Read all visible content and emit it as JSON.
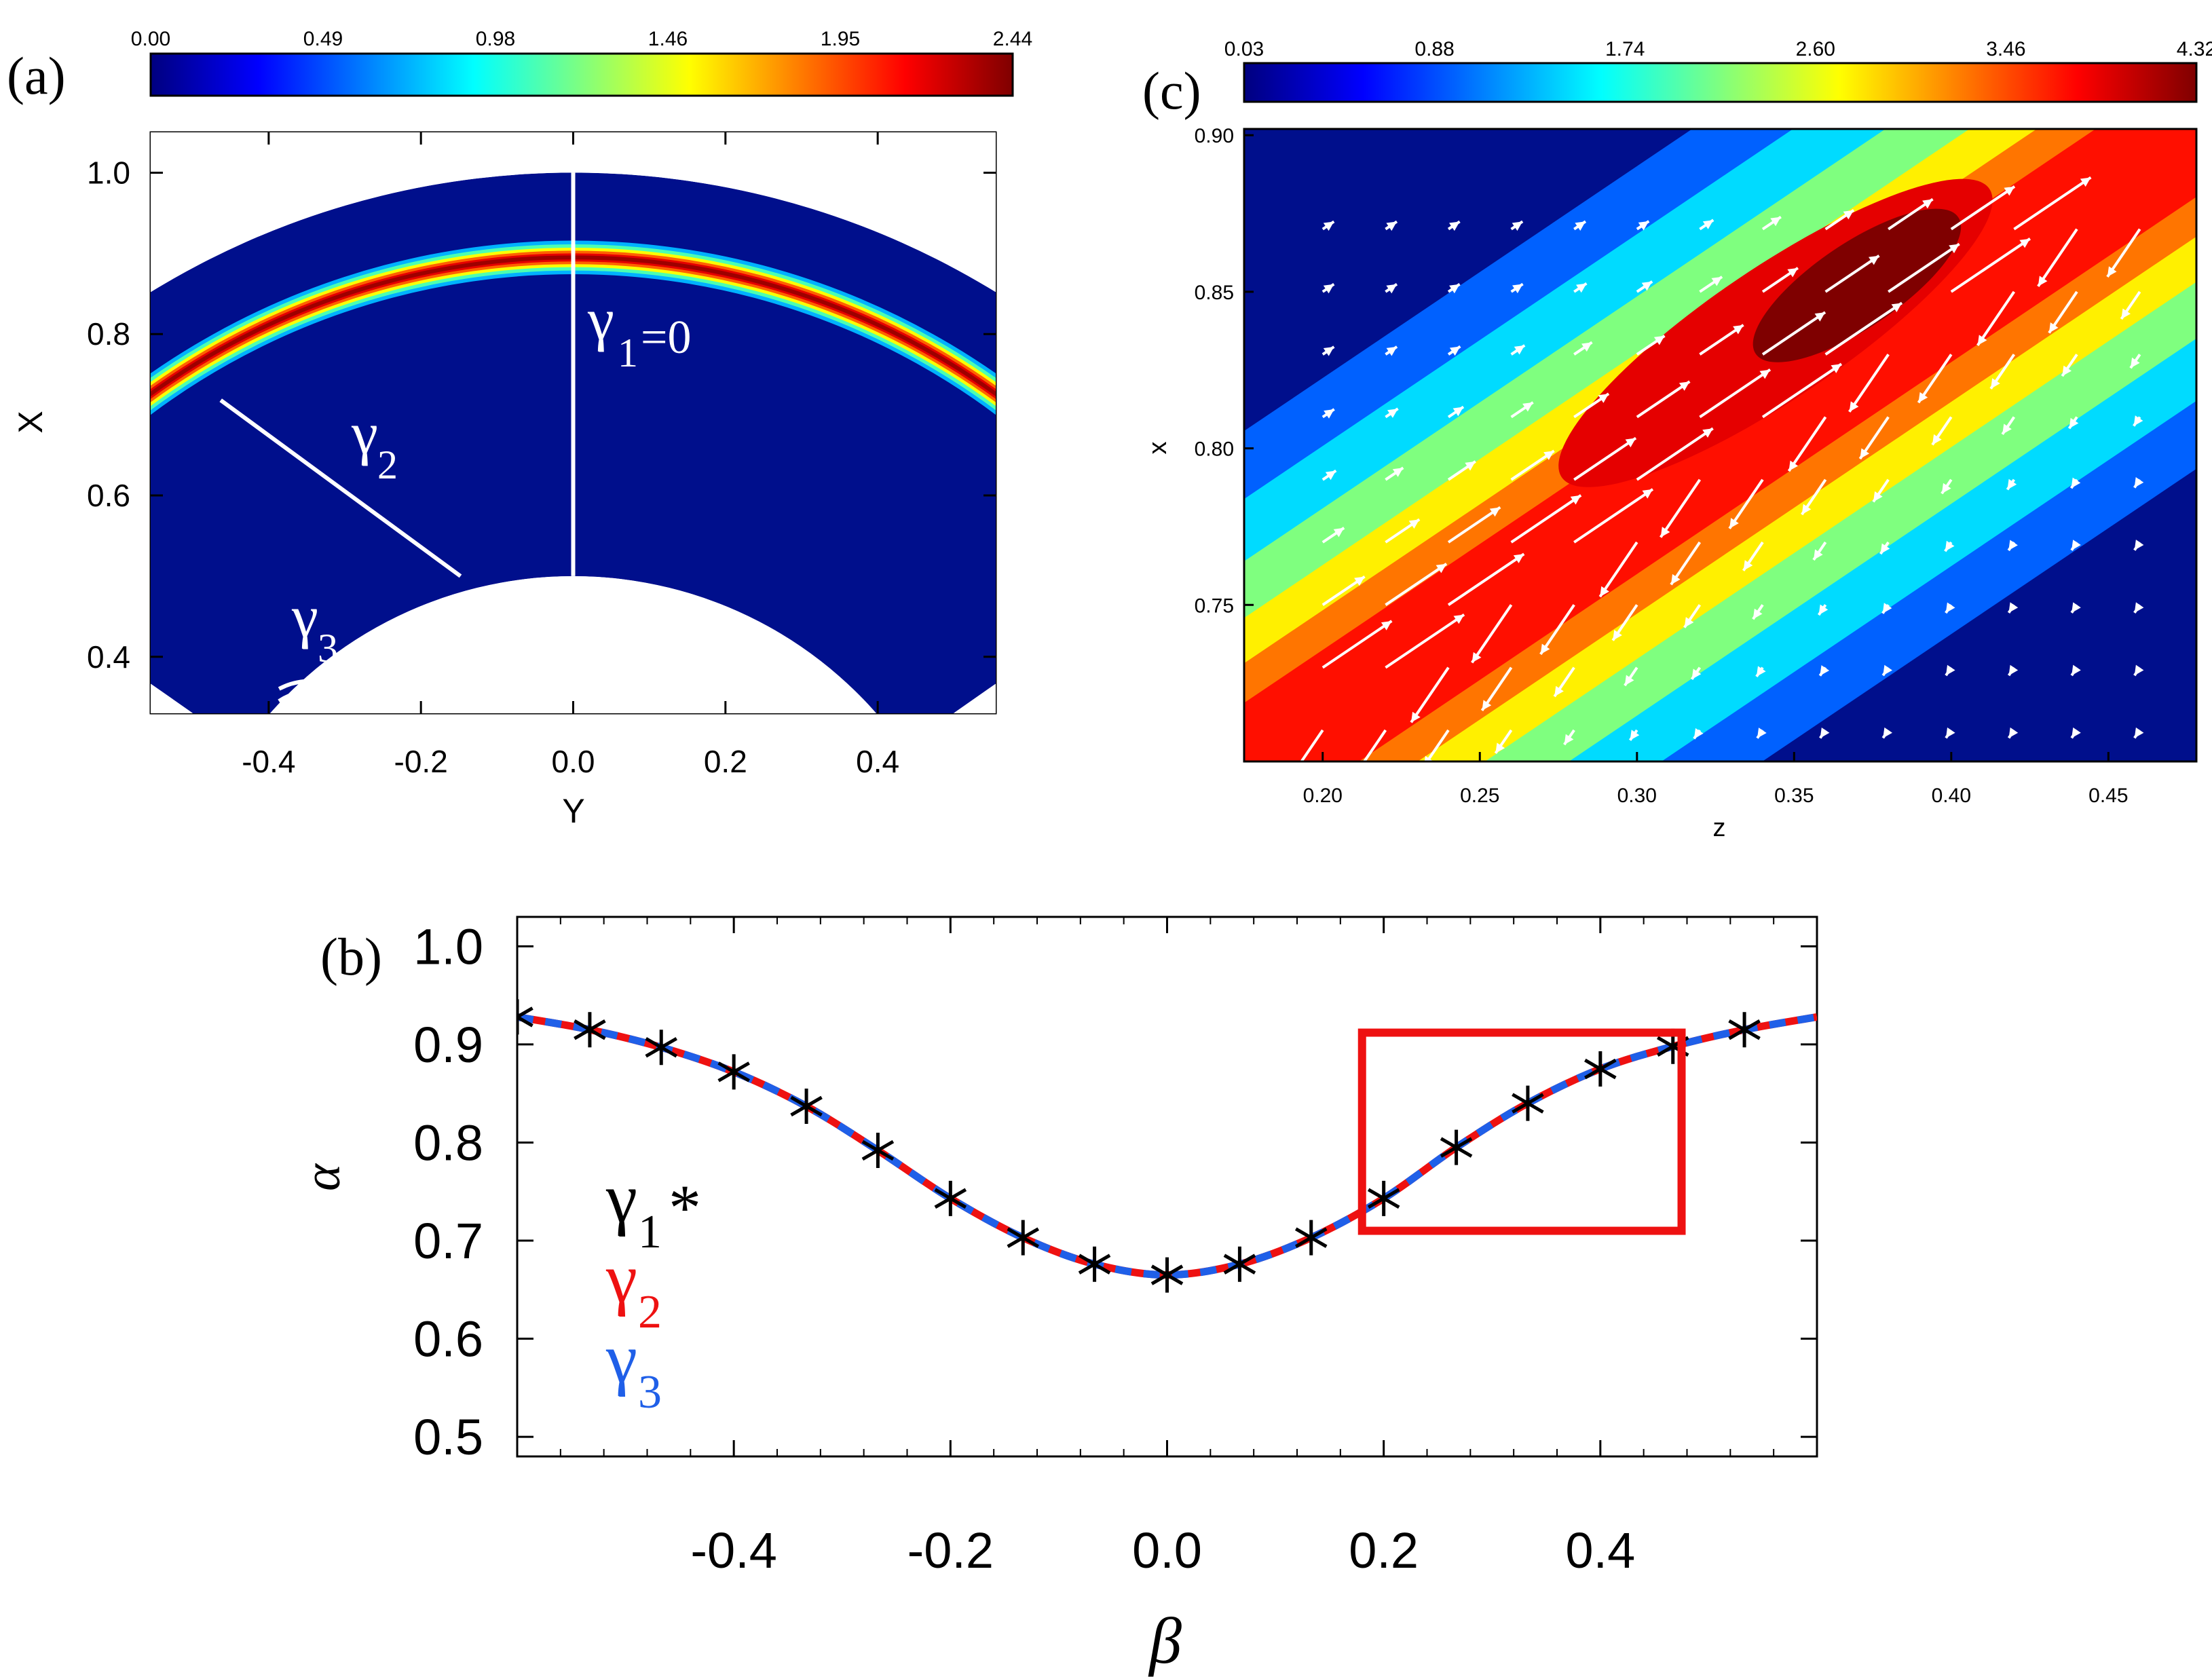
{
  "colors": {
    "jet": [
      "#00007f",
      "#0000ff",
      "#007fff",
      "#00ffff",
      "#7fff7f",
      "#ffff00",
      "#ff7f00",
      "#ff0000",
      "#7f0000"
    ],
    "field_bg": "#000f8c",
    "arrow": "#ffffff",
    "axis": "#000000",
    "gamma1": "#000000",
    "gamma2": "#ee1111",
    "gamma3": "#1f5fe8",
    "highlight_box": "#ee1111"
  },
  "chart_data": [
    {
      "id": "a",
      "panel_label": "(a)",
      "type": "heatmap",
      "title": "",
      "xlabel": "Y",
      "ylabel": "X",
      "xlim": [
        -0.555,
        0.555
      ],
      "ylim": [
        0.33,
        1.05
      ],
      "xticks": [
        -0.4,
        -0.2,
        0.0,
        0.2,
        0.4
      ],
      "xtick_labels": [
        "-0.4",
        "-0.2",
        "0.0",
        "0.2",
        "0.4"
      ],
      "yticks": [
        0.4,
        0.6,
        0.8,
        1.0
      ],
      "ytick_labels": [
        "0.4",
        "0.6",
        "0.8",
        "1.0"
      ],
      "colorbar": {
        "min": 0.0,
        "max": 2.44,
        "labels": [
          "0.00",
          "0.49",
          "0.98",
          "1.46",
          "1.95",
          "2.44"
        ]
      },
      "domain": {
        "r_inner": 0.5,
        "r_outer": 1.0,
        "theta_max_deg": 55
      },
      "ring": {
        "radius": 0.895,
        "width": 0.013,
        "peak": 2.44
      },
      "curves": [
        {
          "label": "γ1=0",
          "kind": "line",
          "from": [
            0.0,
            0.5
          ],
          "to": [
            0.0,
            1.0
          ]
        },
        {
          "label": "γ2",
          "kind": "line",
          "from": [
            -0.148,
            0.5
          ],
          "to": [
            -0.463,
            0.718
          ]
        },
        {
          "label": "γ3",
          "kind": "arc",
          "center": [
            -0.345,
            0.287
          ],
          "radius": 0.083,
          "from_deg": 118,
          "to_deg": 25
        },
        {
          "label": "",
          "kind": "arc",
          "center": [
            -0.345,
            0.287
          ],
          "radius": 0.07,
          "from_deg": 124,
          "to_deg": 28
        }
      ],
      "curve_labels": [
        "γ",
        "1",
        "=0",
        "γ",
        "2",
        "γ",
        "3"
      ]
    },
    {
      "id": "c",
      "panel_label": "(c)",
      "type": "heatmap",
      "title": "",
      "xlabel": "z",
      "ylabel": "x",
      "xlim": [
        0.175,
        0.478
      ],
      "ylim": [
        0.7,
        0.902
      ],
      "xticks": [
        0.2,
        0.25,
        0.3,
        0.35,
        0.4,
        0.45
      ],
      "xtick_labels": [
        "0.20",
        "0.25",
        "0.30",
        "0.35",
        "0.40",
        "0.45"
      ],
      "yticks": [
        0.75,
        0.8,
        0.85,
        0.9
      ],
      "ytick_labels": [
        "0.75",
        "0.80",
        "0.85",
        "0.90"
      ],
      "colorbar": {
        "min": 0.03,
        "max": 4.32,
        "labels": [
          "0.03",
          "0.88",
          "1.74",
          "2.60",
          "3.46",
          "4.32"
        ]
      },
      "band": {
        "from": [
          0.175,
          0.697
        ],
        "to": [
          0.478,
          0.902
        ],
        "width": 0.03,
        "peak_at": [
          0.37,
          0.852
        ]
      },
      "vector_field": {
        "columns": [
          0.2,
          0.22,
          0.24,
          0.26,
          0.28,
          0.3,
          0.32,
          0.34,
          0.36,
          0.38,
          0.4,
          0.42,
          0.44,
          0.46
        ],
        "rows": [
          0.71,
          0.73,
          0.75,
          0.77,
          0.79,
          0.81,
          0.83,
          0.85,
          0.87
        ]
      }
    },
    {
      "id": "b",
      "panel_label": "(b)",
      "type": "line",
      "title": "",
      "xlabel": "β",
      "ylabel": "α",
      "xlim": [
        -0.6,
        0.6
      ],
      "ylim": [
        0.48,
        1.03
      ],
      "xticks": [
        -0.4,
        -0.2,
        0.0,
        0.2,
        0.4
      ],
      "xtick_labels": [
        "-0.4",
        "-0.2",
        "0.0",
        "0.2",
        "0.4"
      ],
      "yticks": [
        0.5,
        0.6,
        0.7,
        0.8,
        0.9,
        1.0
      ],
      "ytick_labels": [
        "0.5",
        "0.6",
        "0.7",
        "0.8",
        "0.9",
        "1.0"
      ],
      "series": [
        {
          "name": "γ1",
          "marker": "*",
          "x": [
            -0.6,
            -0.533,
            -0.467,
            -0.4,
            -0.333,
            -0.267,
            -0.2,
            -0.133,
            -0.067,
            0.0,
            0.067,
            0.133,
            0.2,
            0.267,
            0.333,
            0.4,
            0.467,
            0.533
          ],
          "y": [
            0.928,
            0.915,
            0.897,
            0.872,
            0.837,
            0.792,
            0.743,
            0.703,
            0.676,
            0.665,
            0.676,
            0.703,
            0.743,
            0.795,
            0.84,
            0.875,
            0.898,
            0.915
          ]
        },
        {
          "name": "γ2",
          "style": "solid",
          "x": [
            -0.6,
            -0.533,
            -0.467,
            -0.4,
            -0.333,
            -0.267,
            -0.2,
            -0.133,
            -0.067,
            0.0,
            0.067,
            0.133,
            0.2,
            0.267,
            0.333,
            0.4,
            0.467,
            0.533,
            0.6
          ],
          "y": [
            0.928,
            0.915,
            0.897,
            0.872,
            0.837,
            0.792,
            0.743,
            0.703,
            0.676,
            0.665,
            0.676,
            0.703,
            0.743,
            0.795,
            0.84,
            0.875,
            0.898,
            0.915,
            0.928
          ]
        },
        {
          "name": "γ3",
          "style": "dashed",
          "x": [
            -0.6,
            -0.533,
            -0.467,
            -0.4,
            -0.333,
            -0.267,
            -0.2,
            -0.133,
            -0.067,
            0.0,
            0.067,
            0.133,
            0.2,
            0.267,
            0.333,
            0.4,
            0.467,
            0.533,
            0.6
          ],
          "y": [
            0.928,
            0.915,
            0.897,
            0.872,
            0.837,
            0.792,
            0.743,
            0.703,
            0.676,
            0.665,
            0.676,
            0.703,
            0.743,
            0.795,
            0.84,
            0.875,
            0.898,
            0.915,
            0.928
          ]
        }
      ],
      "legend": [
        {
          "glyph": "γ",
          "sub": "1",
          "suffix": "*",
          "series": "γ1"
        },
        {
          "glyph": "γ",
          "sub": "2",
          "suffix": "",
          "series": "γ2"
        },
        {
          "glyph": "γ",
          "sub": "3",
          "suffix": "",
          "series": "γ3"
        }
      ],
      "highlight_box": {
        "x": [
          0.18,
          0.475
        ],
        "y": [
          0.71,
          0.912
        ]
      }
    }
  ]
}
